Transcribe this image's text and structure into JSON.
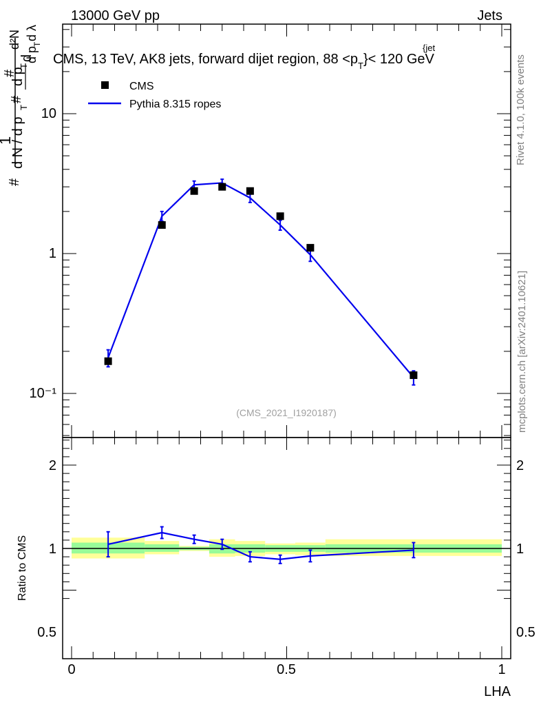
{
  "header": {
    "energy_label": "13000 GeV pp",
    "category_label": "Jets"
  },
  "colors": {
    "data_marker": "#000000",
    "mc_line": "#0000ee",
    "band_inner": "#98fb98",
    "band_outer": "#ffff99",
    "frame": "#000000",
    "side_text": "#808080"
  },
  "side_labels": {
    "rivet": "Rivet 4.1.0,  100k events",
    "mcplots": "mcplots.cern.ch [arXiv:2401.10621]"
  },
  "chart_data": [
    {
      "type": "scatter",
      "scale": "log",
      "title": "CMS, 13 TeV, AK8 jets, forward dijet region, 88 <p",
      "title_sup": "{jet",
      "title_sub": "T",
      "title_end": "}< 120 GeV",
      "ylabel": "# 1/dN/dp_T # d²N/dp_T dλ",
      "watermark": "(CMS_2021_I1920187)",
      "xlim": [
        -0.02,
        1.02
      ],
      "ylim": [
        0.05,
        50
      ],
      "ytick_labels": [
        "10",
        "1",
        "10⁻¹"
      ],
      "legend": [
        {
          "label": "CMS",
          "marker": "square"
        },
        {
          "label": "Pythia 8.315 ropes",
          "marker": "line"
        }
      ],
      "series": [
        {
          "name": "CMS",
          "x": [
            0.085,
            0.21,
            0.285,
            0.35,
            0.415,
            0.485,
            0.555,
            0.795
          ],
          "values": [
            0.17,
            1.6,
            2.8,
            3.0,
            2.8,
            1.85,
            1.1,
            0.135
          ]
        },
        {
          "name": "Pythia 8.315 ropes",
          "x": [
            0.085,
            0.21,
            0.285,
            0.35,
            0.415,
            0.485,
            0.555,
            0.795
          ],
          "values": [
            0.18,
            1.85,
            3.1,
            3.2,
            2.5,
            1.6,
            0.98,
            0.13
          ],
          "errors": [
            0.025,
            0.15,
            0.2,
            0.2,
            0.18,
            0.13,
            0.1,
            0.015
          ]
        }
      ]
    },
    {
      "type": "line",
      "ylabel": "Ratio to CMS",
      "xlabel": "LHA",
      "xlim": [
        -0.02,
        1.02
      ],
      "ylim": [
        0.4,
        2.4
      ],
      "xtick_labels": [
        "0",
        "0.5",
        "1"
      ],
      "ytick_labels": [
        "2",
        "1",
        "0.5"
      ],
      "bins": [
        {
          "lo": 0.0,
          "hi": 0.17,
          "inner": [
            0.94,
            1.07
          ],
          "outer": [
            0.88,
            1.13
          ]
        },
        {
          "lo": 0.17,
          "hi": 0.25,
          "inner": [
            0.96,
            1.05
          ],
          "outer": [
            0.93,
            1.09
          ]
        },
        {
          "lo": 0.25,
          "hi": 0.32,
          "inner": [
            0.98,
            1.02
          ],
          "outer": [
            0.97,
            1.03
          ]
        },
        {
          "lo": 0.32,
          "hi": 0.38,
          "inner": [
            0.94,
            1.05
          ],
          "outer": [
            0.9,
            1.11
          ]
        },
        {
          "lo": 0.38,
          "hi": 0.45,
          "inner": [
            0.95,
            1.05
          ],
          "outer": [
            0.91,
            1.09
          ]
        },
        {
          "lo": 0.45,
          "hi": 0.52,
          "inner": [
            0.96,
            1.04
          ],
          "outer": [
            0.93,
            1.06
          ]
        },
        {
          "lo": 0.52,
          "hi": 0.59,
          "inner": [
            0.96,
            1.04
          ],
          "outer": [
            0.92,
            1.07
          ]
        },
        {
          "lo": 0.59,
          "hi": 1.0,
          "inner": [
            0.95,
            1.05
          ],
          "outer": [
            0.91,
            1.11
          ]
        }
      ],
      "series": [
        {
          "name": "Pythia 8.315 ropes / CMS",
          "x": [
            0.085,
            0.21,
            0.285,
            0.35,
            0.415,
            0.485,
            0.555,
            0.795
          ],
          "values": [
            1.05,
            1.19,
            1.11,
            1.05,
            0.9,
            0.87,
            0.91,
            0.98
          ],
          "errors": [
            0.15,
            0.07,
            0.05,
            0.06,
            0.06,
            0.05,
            0.07,
            0.09
          ]
        }
      ]
    }
  ]
}
